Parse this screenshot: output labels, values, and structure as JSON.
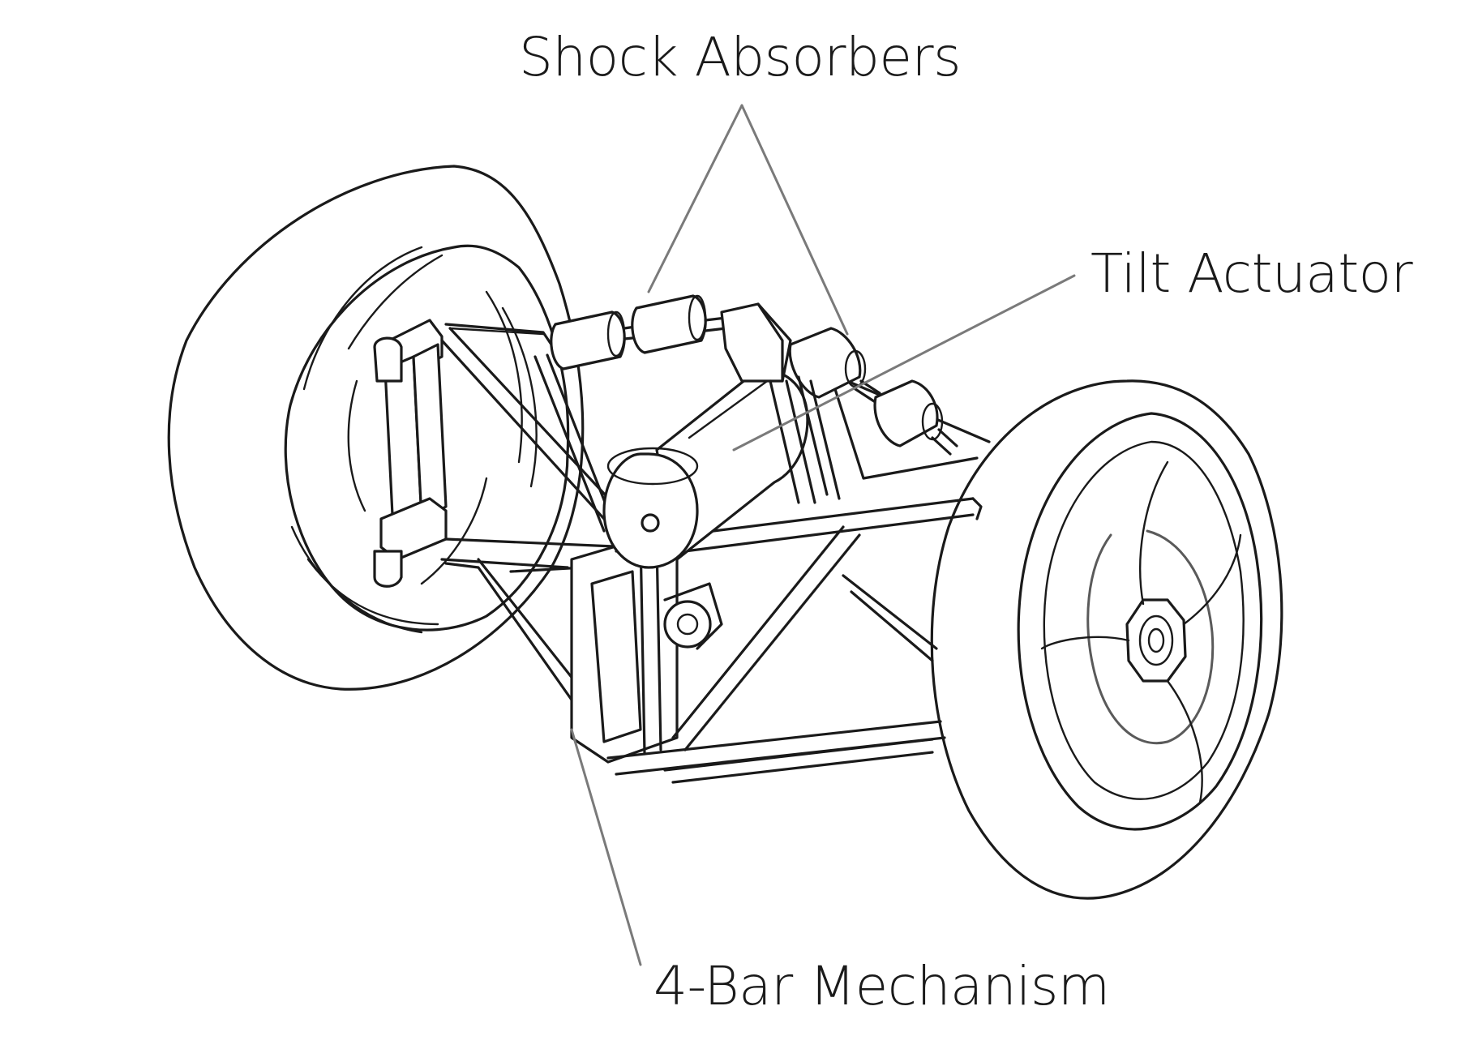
{
  "labels": {
    "shock_absorbers": "Shock Absorbers",
    "tilt_actuator": "Tilt Actuator",
    "four_bar_mechanism": "4-Bar Mechanism"
  },
  "colors": {
    "ink": "#1a1a1a",
    "leader_line": "#7a7a7a",
    "background": "#ffffff"
  }
}
